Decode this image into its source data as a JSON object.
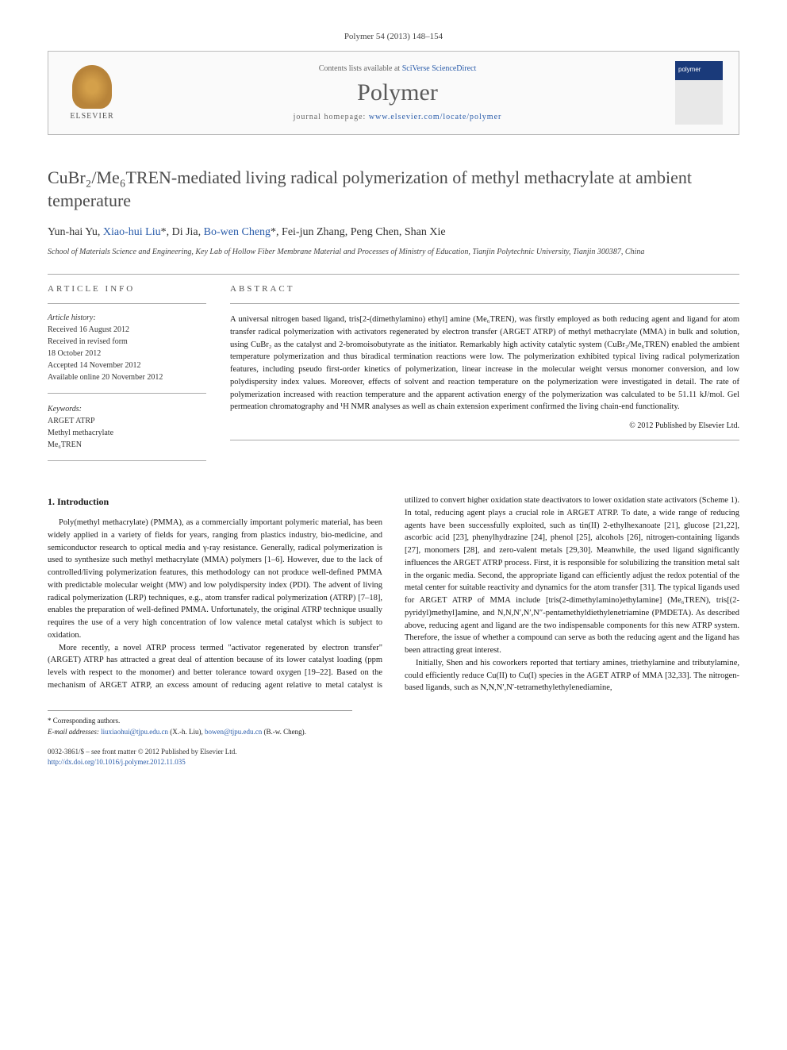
{
  "journal_ref": "Polymer 54 (2013) 148–154",
  "header": {
    "contents_prefix": "Contents lists available at ",
    "contents_link": "SciVerse ScienceDirect",
    "journal_name": "Polymer",
    "homepage_prefix": "journal homepage: ",
    "homepage_url": "www.elsevier.com/locate/polymer",
    "elsevier_label": "ELSEVIER"
  },
  "title": "CuBr₂/Me₆TREN-mediated living radical polymerization of methyl methacrylate at ambient temperature",
  "authors_html": "Yun-hai Yu, Xiao-hui Liu*, Di Jia, Bo-wen Cheng*, Fei-jun Zhang, Peng Chen, Shan Xie",
  "affiliation": "School of Materials Science and Engineering, Key Lab of Hollow Fiber Membrane Material and Processes of Ministry of Education, Tianjin Polytechnic University, Tianjin 300387, China",
  "article_info": {
    "heading": "ARTICLE INFO",
    "history_heading": "Article history:",
    "history": [
      "Received 16 August 2012",
      "Received in revised form",
      "18 October 2012",
      "Accepted 14 November 2012",
      "Available online 20 November 2012"
    ],
    "keywords_heading": "Keywords:",
    "keywords": [
      "ARGET ATRP",
      "Methyl methacrylate",
      "Me₆TREN"
    ]
  },
  "abstract": {
    "heading": "ABSTRACT",
    "text": "A universal nitrogen based ligand, tris[2-(dimethylamino) ethyl] amine (Me₆TREN), was firstly employed as both reducing agent and ligand for atom transfer radical polymerization with activators regenerated by electron transfer (ARGET ATRP) of methyl methacrylate (MMA) in bulk and solution, using CuBr₂ as the catalyst and 2-bromoisobutyrate as the initiator. Remarkably high activity catalytic system (CuBr₂/Me₆TREN) enabled the ambient temperature polymerization and thus biradical termination reactions were low. The polymerization exhibited typical living radical polymerization features, including pseudo first-order kinetics of polymerization, linear increase in the molecular weight versus monomer conversion, and low polydispersity index values. Moreover, effects of solvent and reaction temperature on the polymerization were investigated in detail. The rate of polymerization increased with reaction temperature and the apparent activation energy of the polymerization was calculated to be 51.11 kJ/mol. Gel permeation chromatography and ¹H NMR analyses as well as chain extension experiment confirmed the living chain-end functionality.",
    "copyright": "© 2012 Published by Elsevier Ltd."
  },
  "intro": {
    "heading": "1. Introduction",
    "para1": "Poly(methyl methacrylate) (PMMA), as a commercially important polymeric material, has been widely applied in a variety of fields for years, ranging from plastics industry, bio-medicine, and semiconductor research to optical media and γ-ray resistance. Generally, radical polymerization is used to synthesize such methyl methacrylate (MMA) polymers [1–6]. However, due to the lack of controlled/living polymerization features, this methodology can not produce well-defined PMMA with predictable molecular weight (MW) and low polydispersity index (PDI). The advent of living radical polymerization (LRP) techniques, e.g., atom transfer radical polymerization (ATRP) [7–18], enables the preparation of well-defined PMMA. Unfortunately, the original ATRP technique usually requires the use of a very high concentration of low valence metal catalyst which is subject to oxidation.",
    "para2": "More recently, a novel ATRP process termed \"activator regenerated by electron transfer\" (ARGET) ATRP has attracted a great deal of attention because of its lower catalyst loading (ppm levels with respect to the monomer) and better tolerance toward oxygen [19–22]. Based on the mechanism of ARGET ATRP, an excess amount of reducing agent relative to metal catalyst is utilized to convert higher oxidation state deactivators to lower oxidation state activators (Scheme 1). In total, reducing agent plays a crucial role in ARGET ATRP. To date, a wide range of reducing agents have been successfully exploited, such as tin(II) 2-ethylhexanoate [21], glucose [21,22], ascorbic acid [23], phenylhydrazine [24], phenol [25], alcohols [26], nitrogen-containing ligands [27], monomers [28], and zero-valent metals [29,30]. Meanwhile, the used ligand significantly influences the ARGET ATRP process. First, it is responsible for solubilizing the transition metal salt in the organic media. Second, the appropriate ligand can efficiently adjust the redox potential of the metal center for suitable reactivity and dynamics for the atom transfer [31]. The typical ligands used for ARGET ATRP of MMA include [tris(2-dimethylamino)ethylamine] (Me₆TREN), tris[(2-pyridyl)methyl]amine, and N,N,N′,N′,N″-pentamethyldiethylenetriamine (PMDETA). As described above, reducing agent and ligand are the two indispensable components for this new ATRP system. Therefore, the issue of whether a compound can serve as both the reducing agent and the ligand has been attracting great interest.",
    "para3": "Initially, Shen and his coworkers reported that tertiary amines, triethylamine and tributylamine, could efficiently reduce Cu(II) to Cu(I) species in the AGET ATRP of MMA [32,33]. The nitrogen-based ligands, such as N,N,N′,N′-tetramethylethylenediamine,"
  },
  "footnotes": {
    "corresponding": "* Corresponding authors.",
    "emails_label": "E-mail addresses:",
    "email1": "liuxiaohui@tjpu.edu.cn",
    "email1_who": "(X.-h. Liu),",
    "email2": "bowen@tjpu.edu.cn",
    "email2_who": "(B.-w. Cheng)."
  },
  "bottom": {
    "issn": "0032-3861/$ – see front matter © 2012 Published by Elsevier Ltd.",
    "doi": "http://dx.doi.org/10.1016/j.polymer.2012.11.035"
  },
  "colors": {
    "link": "#2a5caa",
    "heading": "#4a4a4a",
    "text": "#1a1a1a",
    "rule": "#aaaaaa"
  }
}
